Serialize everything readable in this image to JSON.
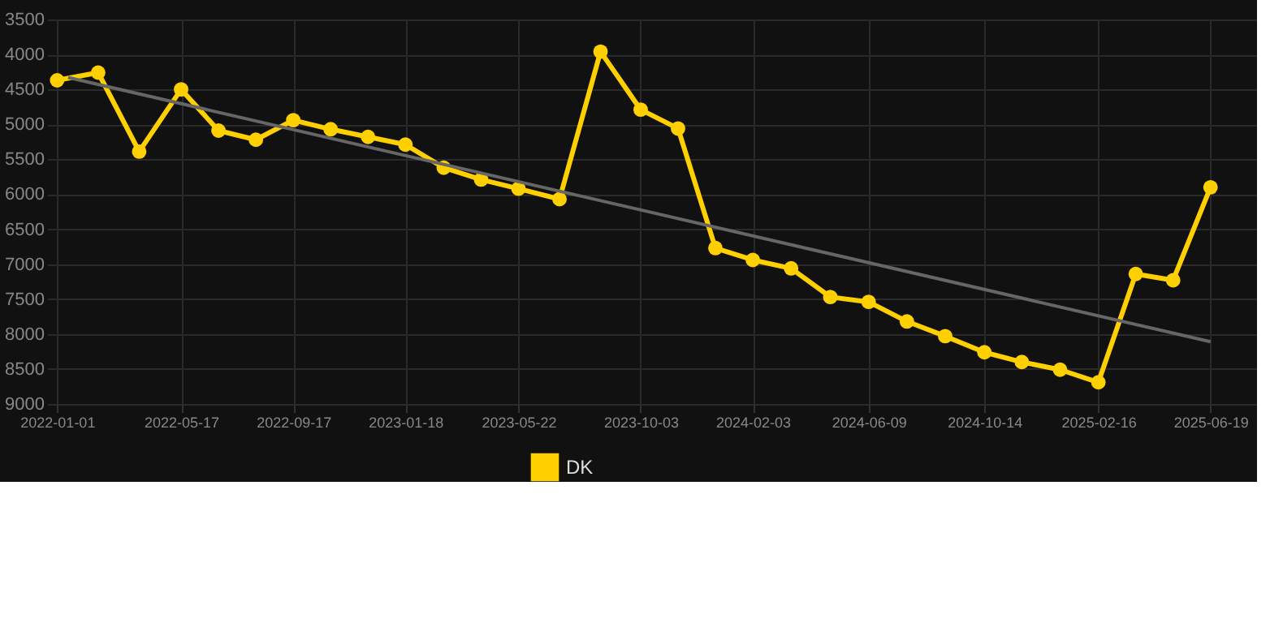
{
  "chart_data": {
    "type": "line",
    "xlim": [
      "2021-12-21",
      "2025-08-09"
    ],
    "ylim": [
      9000,
      3500
    ],
    "xticks": [
      "2022-01-01",
      "2022-05-17",
      "2022-09-17",
      "2023-01-18",
      "2023-05-22",
      "2023-10-03",
      "2024-02-03",
      "2024-06-09",
      "2024-10-14",
      "2025-02-16",
      "2025-06-19"
    ],
    "yticks": [
      3500,
      4000,
      4500,
      5000,
      5500,
      6000,
      6500,
      7000,
      7500,
      8000,
      8500,
      9000
    ],
    "x": [
      "2022-01-01",
      "2022-02-15",
      "2022-04-01",
      "2022-05-17",
      "2022-06-27",
      "2022-08-07",
      "2022-09-17",
      "2022-10-28",
      "2022-12-08",
      "2023-01-18",
      "2023-03-01",
      "2023-04-11",
      "2023-05-22",
      "2023-07-06",
      "2023-08-20",
      "2023-10-03",
      "2023-11-13",
      "2023-12-24",
      "2024-02-03",
      "2024-03-16",
      "2024-04-28",
      "2024-06-09",
      "2024-07-21",
      "2024-09-01",
      "2024-10-14",
      "2024-11-24",
      "2025-01-05",
      "2025-02-16",
      "2025-03-29",
      "2025-05-09",
      "2025-06-19"
    ],
    "series": [
      {
        "name": "DK",
        "color": "#ffd000",
        "marker": "circle",
        "values": [
          4370,
          4260,
          5390,
          4500,
          5090,
          5220,
          4940,
          5070,
          5180,
          5290,
          5620,
          5790,
          5920,
          6070,
          3960,
          4790,
          5060,
          6770,
          6940,
          7060,
          7470,
          7540,
          7820,
          8030,
          8260,
          8400,
          8510,
          8690,
          7140,
          7230,
          5900
        ]
      },
      {
        "type": "line",
        "color": "#666666",
        "marker": "none",
        "x": [
          "2022-01-13",
          "2025-06-19"
        ],
        "values": [
          4330,
          8110
        ]
      }
    ],
    "grid": true,
    "legend": "bottom"
  }
}
